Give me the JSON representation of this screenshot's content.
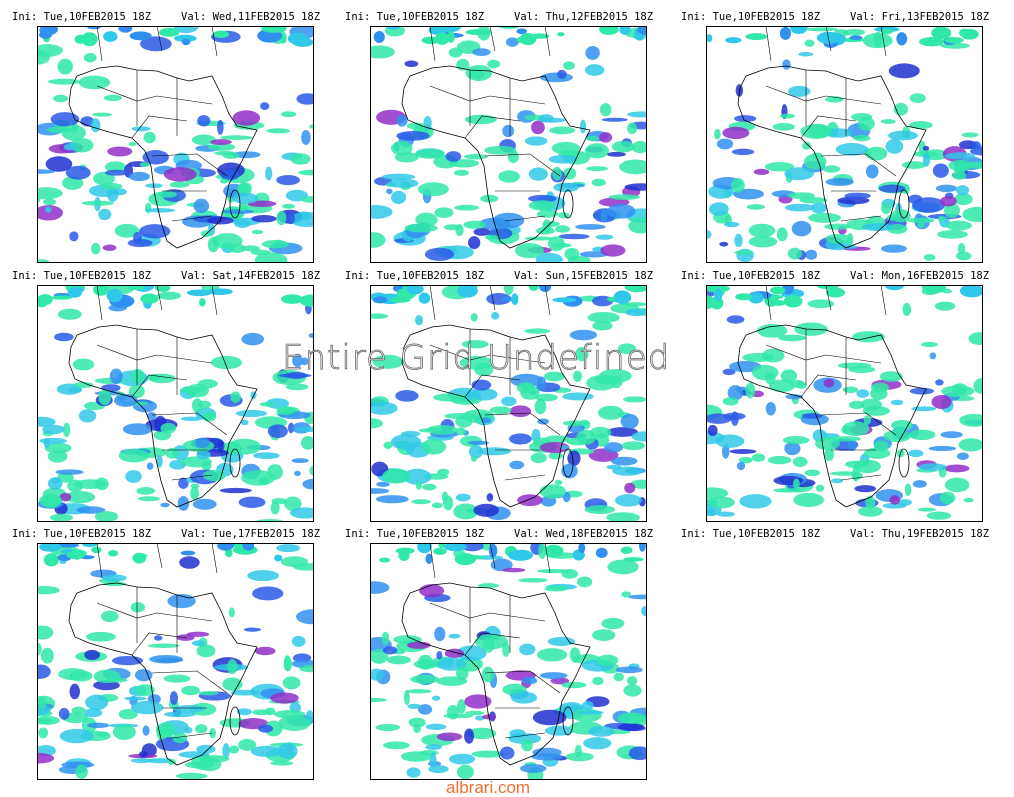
{
  "panels": [
    {
      "ini": "Ini: Tue,10FEB2015 18Z",
      "val": "Val: Wed,11FEB2015 18Z"
    },
    {
      "ini": "Ini: Tue,10FEB2015 18Z",
      "val": "Val: Thu,12FEB2015 18Z"
    },
    {
      "ini": "Ini: Tue,10FEB2015 18Z",
      "val": "Val: Fri,13FEB2015 18Z"
    },
    {
      "ini": "Ini: Tue,10FEB2015 18Z",
      "val": "Val: Sat,14FEB2015 18Z"
    },
    {
      "ini": "Ini: Tue,10FEB2015 18Z",
      "val": "Val: Sun,15FEB2015 18Z"
    },
    {
      "ini": "Ini: Tue,10FEB2015 18Z",
      "val": "Val: Mon,16FEB2015 18Z"
    },
    {
      "ini": "Ini: Tue,10FEB2015 18Z",
      "val": "Val: Tue,17FEB2015 18Z"
    },
    {
      "ini": "Ini: Tue,10FEB2015 18Z",
      "val": "Val: Wed,18FEB2015 18Z"
    },
    {
      "ini": "Ini: Tue,10FEB2015 18Z",
      "val": "Val: Thu,19FEB2015 18Z"
    }
  ],
  "overlay": "Entire Grid Undefined",
  "watermark": "albrari.com"
}
